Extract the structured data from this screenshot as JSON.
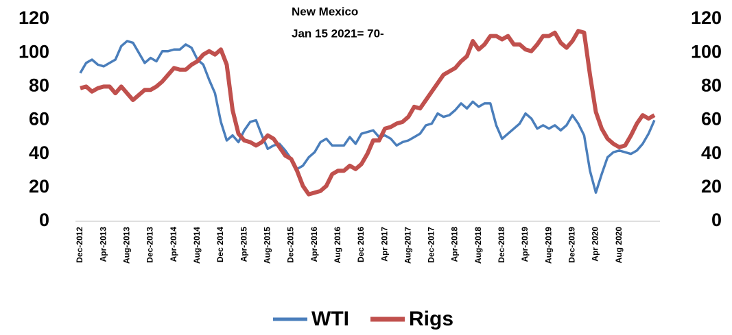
{
  "chart_data": {
    "type": "line",
    "title": "New Mexico",
    "subtitle": "Jan 15 2021= 70-",
    "categories": [
      "Dec-2012",
      null,
      null,
      null,
      "Apr-2013",
      null,
      null,
      null,
      "Aug-2013",
      null,
      null,
      null,
      "Dec-2013",
      null,
      null,
      null,
      "Apr-2014",
      null,
      null,
      null,
      "Aug-2014",
      null,
      null,
      null,
      "Dec 2014",
      null,
      null,
      null,
      "Apr-2015",
      null,
      null,
      null,
      "Aug-2015",
      null,
      null,
      null,
      "Dec-2015",
      null,
      null,
      null,
      "Apr-2016",
      null,
      null,
      null,
      "Aug 2016",
      null,
      null,
      null,
      "Dec 2016",
      null,
      null,
      null,
      "Apr 2017",
      null,
      null,
      null,
      "Aug-2017",
      null,
      null,
      null,
      "Dec-2017",
      null,
      null,
      null,
      "Apr-2018",
      null,
      null,
      null,
      "Aug-2018",
      null,
      null,
      null,
      "Dec-2018",
      null,
      null,
      null,
      "Apr-2019",
      null,
      null,
      null,
      "Aug-2019",
      null,
      null,
      null,
      "Dec-2019",
      null,
      null,
      null,
      "Apr 2020",
      null,
      null,
      null,
      "Aug 2020",
      null,
      null,
      null,
      null,
      null,
      null
    ],
    "series": [
      {
        "name": "WTI",
        "color": "#4a7ebb",
        "values": [
          88,
          94,
          96,
          93,
          92,
          94,
          96,
          104,
          107,
          106,
          100,
          94,
          97,
          95,
          101,
          101,
          102,
          102,
          105,
          103,
          96,
          93,
          84,
          76,
          59,
          48,
          51,
          47,
          54,
          59,
          60,
          51,
          43,
          45,
          46,
          42,
          37,
          31,
          33,
          38,
          41,
          47,
          49,
          45,
          45,
          45,
          50,
          46,
          52,
          53,
          54,
          50,
          51,
          49,
          45,
          47,
          48,
          50,
          52,
          57,
          58,
          64,
          62,
          63,
          66,
          70,
          67,
          71,
          68,
          70,
          70,
          57,
          49,
          52,
          55,
          58,
          64,
          61,
          55,
          57,
          55,
          57,
          54,
          57,
          63,
          58,
          51,
          30,
          17,
          28,
          38,
          41,
          42,
          41,
          40,
          42,
          46,
          52,
          60
        ]
      },
      {
        "name": "Rigs",
        "color": "#c0504d",
        "axis": "y2",
        "values": [
          79,
          80,
          77,
          79,
          80,
          80,
          76,
          80,
          76,
          72,
          75,
          78,
          78,
          80,
          83,
          87,
          91,
          90,
          90,
          93,
          95,
          99,
          101,
          99,
          102,
          93,
          66,
          52,
          48,
          47,
          45,
          47,
          51,
          49,
          44,
          39,
          37,
          30,
          21,
          16,
          17,
          18,
          21,
          28,
          30,
          30,
          33,
          31,
          34,
          40,
          48,
          48,
          55,
          56,
          58,
          59,
          62,
          68,
          67,
          72,
          77,
          82,
          87,
          89,
          91,
          95,
          98,
          107,
          102,
          105,
          110,
          110,
          108,
          110,
          105,
          105,
          102,
          101,
          105,
          110,
          110,
          112,
          106,
          103,
          107,
          113,
          112,
          87,
          65,
          55,
          49,
          46,
          44,
          45,
          51,
          58,
          63,
          61,
          63
        ]
      }
    ],
    "ylim": [
      0,
      120
    ],
    "yticks": [
      0,
      20,
      40,
      60,
      80,
      100,
      120
    ],
    "y2lim": [
      0,
      120
    ],
    "y2ticks": [
      0,
      20,
      40,
      60,
      80,
      100,
      120
    ],
    "legend": "bottom"
  }
}
